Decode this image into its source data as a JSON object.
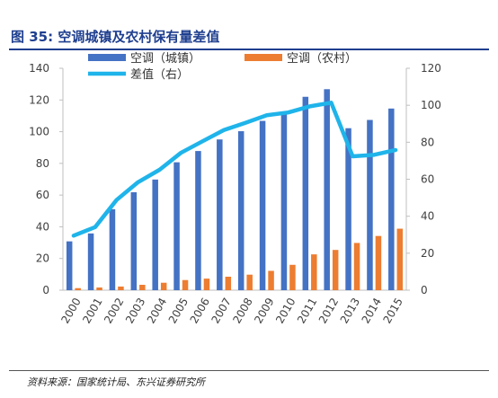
{
  "figure": {
    "title": "图 35: 空调城镇及农村保有量差值",
    "source": "资料来源：国家统计局、东兴证券研究所"
  },
  "chart_data": {
    "type": "bar",
    "categories": [
      "2000",
      "2001",
      "2002",
      "2003",
      "2004",
      "2005",
      "2006",
      "2007",
      "2008",
      "2009",
      "2010",
      "2011",
      "2012",
      "2013",
      "2014",
      "2015"
    ],
    "series": [
      {
        "name": "空调（城镇）",
        "type": "bar",
        "axis": "left",
        "color": "#4472c4",
        "values": [
          30.8,
          35.8,
          51.1,
          61.8,
          69.8,
          80.7,
          87.8,
          95.1,
          100.3,
          106.8,
          112.1,
          122.0,
          126.8,
          102.2,
          107.4,
          114.6
        ]
      },
      {
        "name": "空调（农村）",
        "type": "bar",
        "axis": "left",
        "color": "#ed7d31",
        "values": [
          1.3,
          1.7,
          2.3,
          3.4,
          4.7,
          6.4,
          7.3,
          8.5,
          9.8,
          12.2,
          16.0,
          22.6,
          25.4,
          29.8,
          34.2,
          38.8
        ]
      },
      {
        "name": "差值（右）",
        "type": "line",
        "axis": "right",
        "color": "#1fb4ea",
        "values": [
          29.5,
          34.1,
          48.8,
          58.4,
          65.1,
          74.3,
          80.5,
          86.6,
          90.5,
          94.6,
          96.1,
          99.4,
          101.4,
          72.4,
          73.2,
          75.8
        ]
      }
    ],
    "y_left": {
      "min": 0,
      "max": 140,
      "ticks": [
        0,
        20,
        40,
        60,
        80,
        100,
        120,
        140
      ]
    },
    "y_right": {
      "min": 0,
      "max": 120,
      "ticks": [
        0,
        20,
        40,
        60,
        80,
        100,
        120
      ]
    },
    "legend_position": "top",
    "grid": false,
    "xlabel": "",
    "ylabel": ""
  }
}
